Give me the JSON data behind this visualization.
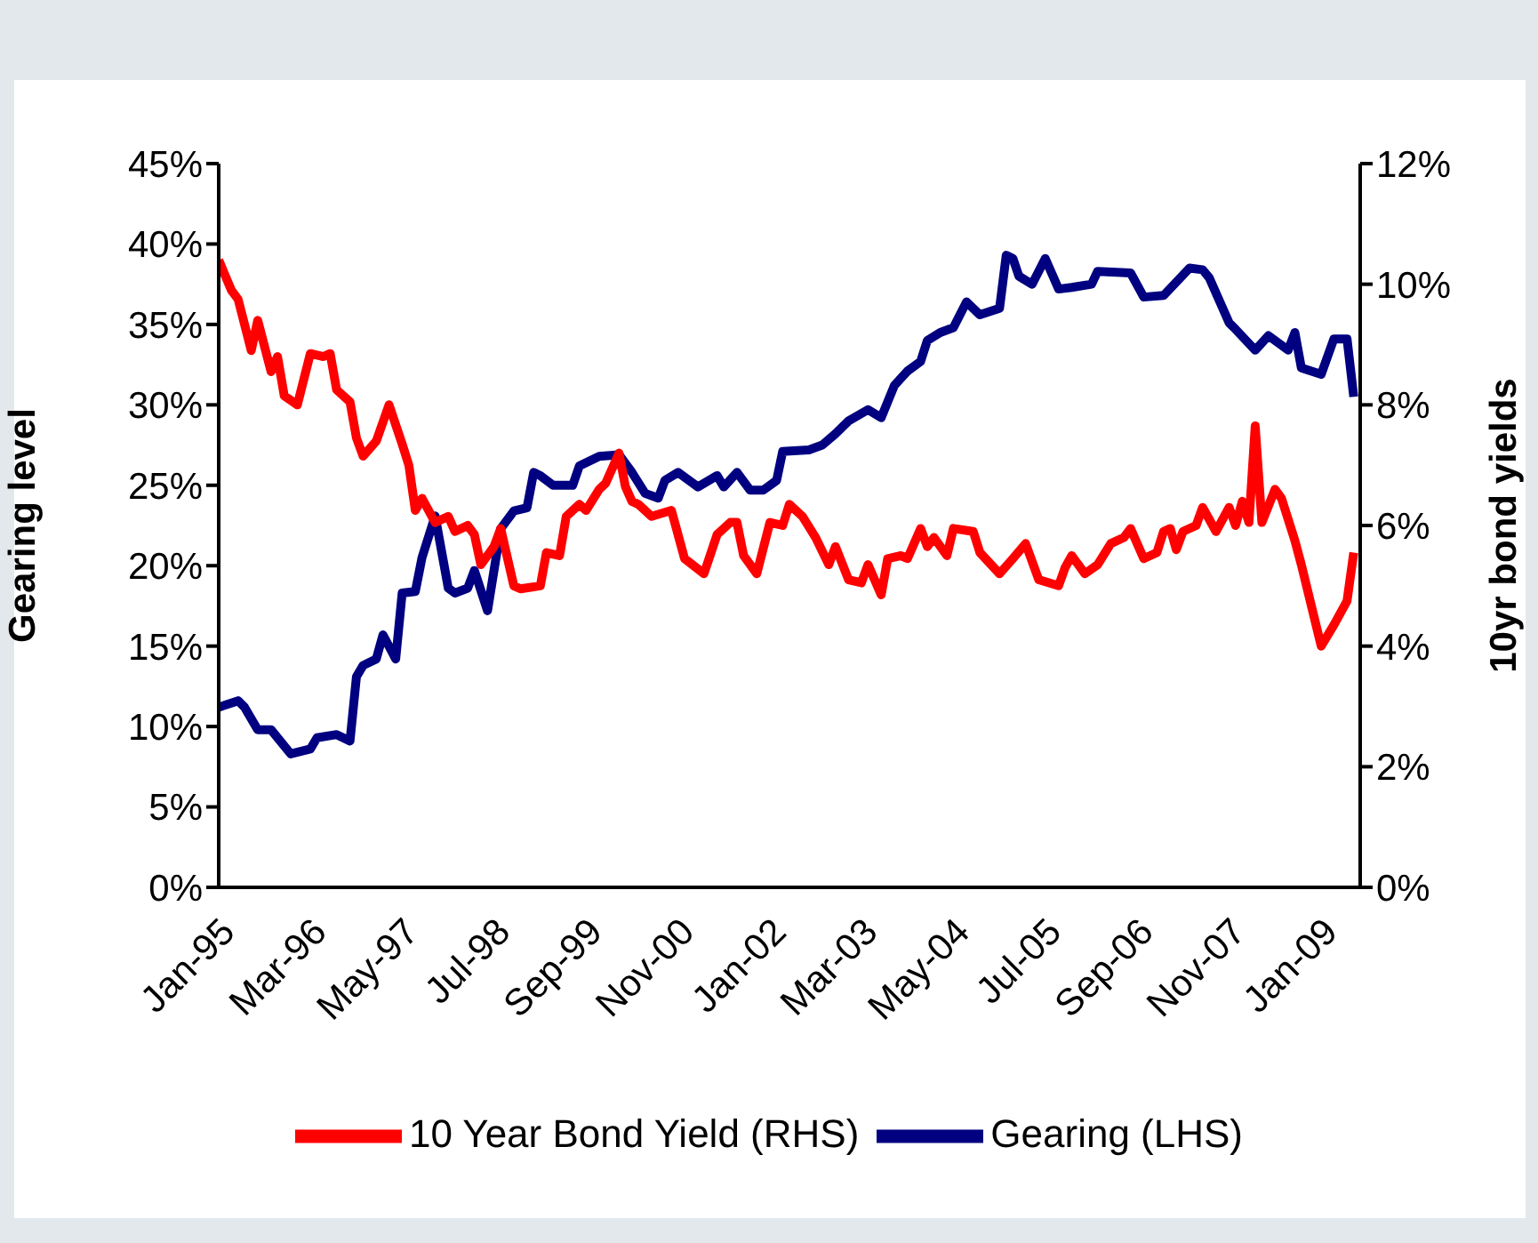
{
  "chart_data": {
    "type": "line",
    "ylabel": "Gearing level",
    "y2label": "10yr bond yields",
    "xlim": [
      "1995-01",
      "2009-07"
    ],
    "xticks": [
      {
        "value": "1995-01",
        "label": "Jan-95"
      },
      {
        "value": "1996-03",
        "label": "Mar-96"
      },
      {
        "value": "1997-05",
        "label": "May-97"
      },
      {
        "value": "1998-07",
        "label": "Jul-98"
      },
      {
        "value": "1999-09",
        "label": "Sep-99"
      },
      {
        "value": "2000-11",
        "label": "Nov-00"
      },
      {
        "value": "2002-01",
        "label": "Jan-02"
      },
      {
        "value": "2003-03",
        "label": "Mar-03"
      },
      {
        "value": "2004-05",
        "label": "May-04"
      },
      {
        "value": "2005-07",
        "label": "Jul-05"
      },
      {
        "value": "2006-09",
        "label": "Sep-06"
      },
      {
        "value": "2007-11",
        "label": "Nov-07"
      },
      {
        "value": "2009-01",
        "label": "Jan-09"
      }
    ],
    "ylim": [
      0,
      45
    ],
    "yticks": [
      {
        "value": 0,
        "label": "0%"
      },
      {
        "value": 5,
        "label": "5%"
      },
      {
        "value": 10,
        "label": "10%"
      },
      {
        "value": 15,
        "label": "15%"
      },
      {
        "value": 20,
        "label": "20%"
      },
      {
        "value": 25,
        "label": "25%"
      },
      {
        "value": 30,
        "label": "30%"
      },
      {
        "value": 35,
        "label": "35%"
      },
      {
        "value": 40,
        "label": "40%"
      },
      {
        "value": 45,
        "label": "45%"
      }
    ],
    "y2lim": [
      0,
      12
    ],
    "y2ticks": [
      {
        "value": 0,
        "label": "0%"
      },
      {
        "value": 2,
        "label": "2%"
      },
      {
        "value": 4,
        "label": "4%"
      },
      {
        "value": 6,
        "label": "6%"
      },
      {
        "value": 8,
        "label": "8%"
      },
      {
        "value": 10,
        "label": "10%"
      },
      {
        "value": 12,
        "label": "12%"
      }
    ],
    "legend": "bottom",
    "series": [
      {
        "name": "Gearing (LHS)",
        "color": "#000080",
        "x": [
          "1995-01",
          "1995-04",
          "1995-05",
          "1995-07",
          "1995-09",
          "1995-12",
          "1996-03",
          "1996-04",
          "1996-07",
          "1996-09",
          "1996-10",
          "1996-11",
          "1997-01",
          "1997-02",
          "1997-04",
          "1997-05",
          "1997-07",
          "1997-08",
          "1997-10",
          "1997-12",
          "1998-01",
          "1998-03",
          "1998-04",
          "1998-06",
          "1998-08",
          "1998-10",
          "1998-12",
          "1999-01",
          "1999-02",
          "1999-04",
          "1999-07",
          "1999-08",
          "1999-11",
          "2000-02",
          "2000-04",
          "2000-06",
          "2000-08",
          "2000-09",
          "2000-11",
          "2001-02",
          "2001-05",
          "2001-06",
          "2001-08",
          "2001-10",
          "2001-12",
          "2002-02",
          "2002-03",
          "2002-07",
          "2002-09",
          "2002-11",
          "2003-01",
          "2003-04",
          "2003-06",
          "2003-08",
          "2003-10",
          "2003-12",
          "2004-01",
          "2004-03",
          "2004-05",
          "2004-07",
          "2004-09",
          "2004-12",
          "2005-01",
          "2005-02",
          "2005-03",
          "2005-05",
          "2005-07",
          "2005-09",
          "2005-11",
          "2006-02",
          "2006-03",
          "2006-08",
          "2006-10",
          "2007-01",
          "2007-05",
          "2007-07",
          "2007-08",
          "2007-11",
          "2007-12",
          "2008-03",
          "2008-05",
          "2008-08",
          "2008-09",
          "2008-10",
          "2009-01",
          "2009-03",
          "2009-05",
          "2009-06"
        ],
        "values": [
          11.2,
          11.6,
          11.2,
          9.8,
          9.8,
          8.3,
          8.6,
          9.3,
          9.5,
          9.1,
          13.1,
          13.8,
          14.2,
          15.7,
          14.2,
          18.3,
          18.4,
          20.5,
          23.1,
          18.6,
          18.3,
          18.6,
          19.7,
          17.2,
          22.3,
          23.4,
          23.6,
          25.8,
          25.6,
          25.0,
          25.0,
          26.2,
          26.8,
          26.9,
          25.8,
          24.5,
          24.2,
          25.3,
          25.8,
          24.9,
          25.6,
          24.9,
          25.8,
          24.7,
          24.7,
          25.3,
          27.1,
          27.2,
          27.5,
          28.2,
          29.0,
          29.7,
          29.2,
          31.2,
          32.1,
          32.7,
          34.0,
          34.5,
          34.8,
          36.4,
          35.6,
          36.0,
          39.3,
          39.1,
          38.0,
          37.5,
          39.1,
          37.2,
          37.3,
          37.5,
          38.3,
          38.2,
          36.7,
          36.8,
          38.5,
          38.4,
          37.9,
          35.1,
          34.7,
          33.4,
          34.3,
          33.4,
          34.5,
          32.3,
          31.9,
          34.1,
          34.1,
          30.5
        ]
      },
      {
        "name": "10 Year Bond Yield (RHS)",
        "color": "#ff0000",
        "axis": "y2",
        "x": [
          "1995-01",
          "1995-03",
          "1995-04",
          "1995-06",
          "1995-07",
          "1995-09",
          "1995-10",
          "1995-11",
          "1996-01",
          "1996-03",
          "1996-05",
          "1996-06",
          "1996-07",
          "1996-09",
          "1996-10",
          "1996-11",
          "1997-01",
          "1997-03",
          "1997-05",
          "1997-06",
          "1997-07",
          "1997-08",
          "1997-10",
          "1997-12",
          "1998-01",
          "1998-03",
          "1998-04",
          "1998-05",
          "1998-07",
          "1998-08",
          "1998-10",
          "1998-11",
          "1999-02",
          "1999-03",
          "1999-05",
          "1999-06",
          "1999-08",
          "1999-09",
          "1999-11",
          "1999-12",
          "2000-02",
          "2000-03",
          "2000-04",
          "2000-05",
          "2000-07",
          "2000-10",
          "2000-12",
          "2001-03",
          "2001-05",
          "2001-07",
          "2001-08",
          "2001-09",
          "2001-11",
          "2002-01",
          "2002-03",
          "2002-04",
          "2002-06",
          "2002-08",
          "2002-10",
          "2002-11",
          "2003-01",
          "2003-03",
          "2003-04",
          "2003-06",
          "2003-07",
          "2003-09",
          "2003-10",
          "2003-12",
          "2004-01",
          "2004-02",
          "2004-04",
          "2004-05",
          "2004-08",
          "2004-09",
          "2004-12",
          "2005-02",
          "2005-04",
          "2005-06",
          "2005-09",
          "2005-10",
          "2005-11",
          "2006-01",
          "2006-03",
          "2006-05",
          "2006-07",
          "2006-08",
          "2006-10",
          "2006-12",
          "2007-01",
          "2007-02",
          "2007-03",
          "2007-04",
          "2007-06",
          "2007-07",
          "2007-09",
          "2007-11",
          "2007-12",
          "2008-01",
          "2008-02",
          "2008-03",
          "2008-04",
          "2008-06",
          "2008-07",
          "2008-09",
          "2008-10",
          "2009-01",
          "2009-03",
          "2009-05",
          "2009-06"
        ],
        "values": [
          10.4,
          9.9,
          9.75,
          8.9,
          9.4,
          8.55,
          8.8,
          8.15,
          8.0,
          8.85,
          8.8,
          8.85,
          8.25,
          8.05,
          7.45,
          7.15,
          7.4,
          8.0,
          7.35,
          7.0,
          6.25,
          6.45,
          6.05,
          6.15,
          5.9,
          6.0,
          5.85,
          5.35,
          5.65,
          5.95,
          5.0,
          4.95,
          5.0,
          5.55,
          5.5,
          6.15,
          6.35,
          6.25,
          6.6,
          6.7,
          7.2,
          6.65,
          6.4,
          6.35,
          6.15,
          6.25,
          5.45,
          5.2,
          5.85,
          6.05,
          6.05,
          5.5,
          5.2,
          6.05,
          6.0,
          6.35,
          6.15,
          5.8,
          5.35,
          5.65,
          5.1,
          5.05,
          5.35,
          4.85,
          5.45,
          5.5,
          5.45,
          5.95,
          5.65,
          5.8,
          5.5,
          5.95,
          5.9,
          5.55,
          5.2,
          5.45,
          5.7,
          5.1,
          5.0,
          5.3,
          5.5,
          5.2,
          5.35,
          5.7,
          5.8,
          5.95,
          5.45,
          5.55,
          5.9,
          5.95,
          5.6,
          5.9,
          6.0,
          6.3,
          5.9,
          6.3,
          6.0,
          6.4,
          6.05,
          7.65,
          6.05,
          6.6,
          6.45,
          5.75,
          5.35,
          4.0,
          4.35,
          4.75,
          5.55
        ]
      }
    ]
  }
}
